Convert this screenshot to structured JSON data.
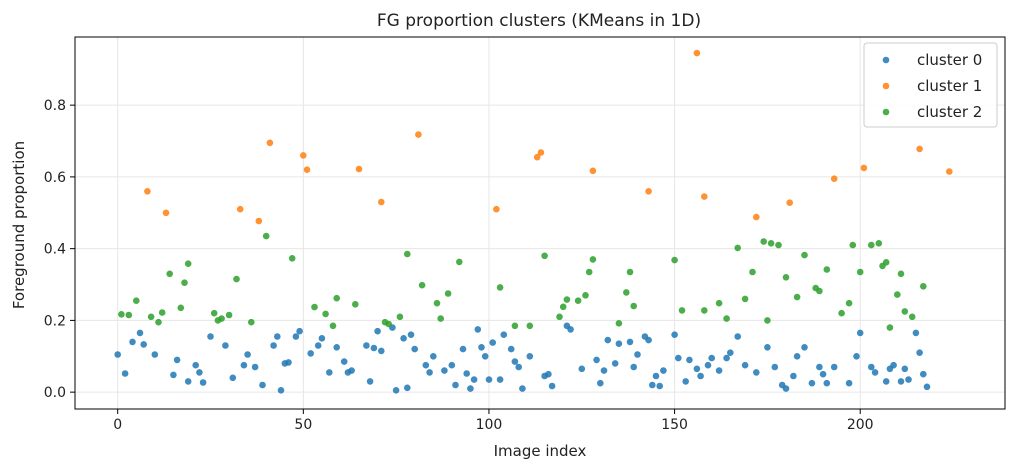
{
  "chart_data": {
    "type": "scatter",
    "title": "FG proportion clusters (KMeans in 1D)",
    "xlabel": "Image index",
    "ylabel": "Foreground proportion",
    "xlim": [
      -11.5,
      239
    ],
    "ylim": [
      -0.047,
      0.99
    ],
    "xticks": [
      0,
      50,
      100,
      150,
      200
    ],
    "yticks": [
      0.0,
      0.2,
      0.4,
      0.6,
      0.8
    ],
    "xtick_labels": [
      "0",
      "50",
      "100",
      "150",
      "200"
    ],
    "ytick_labels": [
      "0.0",
      "0.2",
      "0.4",
      "0.6",
      "0.8"
    ],
    "grid": true,
    "legend_position": "top-right",
    "series": [
      {
        "name": "cluster 0",
        "color": "#1f77b4",
        "points": [
          [
            0,
            0.105
          ],
          [
            2,
            0.052
          ],
          [
            4,
            0.14
          ],
          [
            6,
            0.165
          ],
          [
            7,
            0.133
          ],
          [
            10,
            0.105
          ],
          [
            15,
            0.048
          ],
          [
            16,
            0.09
          ],
          [
            19,
            0.03
          ],
          [
            21,
            0.075
          ],
          [
            22,
            0.055
          ],
          [
            23,
            0.027
          ],
          [
            25,
            0.155
          ],
          [
            29,
            0.13
          ],
          [
            31,
            0.04
          ],
          [
            34,
            0.075
          ],
          [
            35,
            0.105
          ],
          [
            37,
            0.07
          ],
          [
            39,
            0.02
          ],
          [
            42,
            0.13
          ],
          [
            43,
            0.155
          ],
          [
            44,
            0.005
          ],
          [
            45,
            0.08
          ],
          [
            46,
            0.083
          ],
          [
            48,
            0.155
          ],
          [
            49,
            0.17
          ],
          [
            52,
            0.108
          ],
          [
            54,
            0.13
          ],
          [
            55,
            0.15
          ],
          [
            57,
            0.055
          ],
          [
            59,
            0.125
          ],
          [
            61,
            0.085
          ],
          [
            62,
            0.055
          ],
          [
            63,
            0.06
          ],
          [
            67,
            0.13
          ],
          [
            68,
            0.03
          ],
          [
            69,
            0.123
          ],
          [
            70,
            0.17
          ],
          [
            71,
            0.115
          ],
          [
            74,
            0.18
          ],
          [
            75,
            0.005
          ],
          [
            77,
            0.15
          ],
          [
            78,
            0.012
          ],
          [
            79,
            0.16
          ],
          [
            80,
            0.12
          ],
          [
            83,
            0.075
          ],
          [
            84,
            0.055
          ],
          [
            85,
            0.1
          ],
          [
            88,
            0.06
          ],
          [
            90,
            0.075
          ],
          [
            91,
            0.02
          ],
          [
            93,
            0.12
          ],
          [
            94,
            0.052
          ],
          [
            95,
            0.01
          ],
          [
            96,
            0.035
          ],
          [
            97,
            0.175
          ],
          [
            98,
            0.125
          ],
          [
            99,
            0.1
          ],
          [
            100,
            0.035
          ],
          [
            101,
            0.138
          ],
          [
            103,
            0.035
          ],
          [
            104,
            0.16
          ],
          [
            106,
            0.12
          ],
          [
            107,
            0.085
          ],
          [
            108,
            0.07
          ],
          [
            109,
            0.01
          ],
          [
            111,
            0.1
          ],
          [
            115,
            0.045
          ],
          [
            116,
            0.05
          ],
          [
            117,
            0.017
          ],
          [
            121,
            0.185
          ],
          [
            122,
            0.175
          ],
          [
            125,
            0.065
          ],
          [
            129,
            0.09
          ],
          [
            130,
            0.025
          ],
          [
            131,
            0.06
          ],
          [
            132,
            0.145
          ],
          [
            134,
            0.08
          ],
          [
            135,
            0.135
          ],
          [
            138,
            0.14
          ],
          [
            139,
            0.07
          ],
          [
            140,
            0.105
          ],
          [
            142,
            0.155
          ],
          [
            143,
            0.145
          ],
          [
            144,
            0.02
          ],
          [
            145,
            0.045
          ],
          [
            146,
            0.017
          ],
          [
            147,
            0.06
          ],
          [
            150,
            0.16
          ],
          [
            151,
            0.095
          ],
          [
            153,
            0.03
          ],
          [
            154,
            0.09
          ],
          [
            156,
            0.065
          ],
          [
            157,
            0.045
          ],
          [
            159,
            0.075
          ],
          [
            160,
            0.095
          ],
          [
            162,
            0.06
          ],
          [
            164,
            0.095
          ],
          [
            165,
            0.11
          ],
          [
            167,
            0.155
          ],
          [
            169,
            0.075
          ],
          [
            172,
            0.055
          ],
          [
            175,
            0.125
          ],
          [
            177,
            0.07
          ],
          [
            179,
            0.02
          ],
          [
            180,
            0.01
          ],
          [
            182,
            0.045
          ],
          [
            183,
            0.1
          ],
          [
            185,
            0.125
          ],
          [
            187,
            0.025
          ],
          [
            189,
            0.07
          ],
          [
            190,
            0.05
          ],
          [
            191,
            0.025
          ],
          [
            193,
            0.07
          ],
          [
            197,
            0.025
          ],
          [
            199,
            0.1
          ],
          [
            200,
            0.165
          ],
          [
            203,
            0.07
          ],
          [
            204,
            0.055
          ],
          [
            207,
            0.03
          ],
          [
            208,
            0.065
          ],
          [
            209,
            0.075
          ],
          [
            211,
            0.03
          ],
          [
            212,
            0.065
          ],
          [
            213,
            0.035
          ],
          [
            215,
            0.165
          ],
          [
            216,
            0.11
          ],
          [
            217,
            0.05
          ],
          [
            218,
            0.015
          ]
        ]
      },
      {
        "name": "cluster 1",
        "color": "#ff7f0e",
        "points": [
          [
            8,
            0.56
          ],
          [
            13,
            0.5
          ],
          [
            33,
            0.51
          ],
          [
            38,
            0.477
          ],
          [
            41,
            0.695
          ],
          [
            50,
            0.66
          ],
          [
            51,
            0.62
          ],
          [
            65,
            0.622
          ],
          [
            71,
            0.53
          ],
          [
            81,
            0.718
          ],
          [
            102,
            0.51
          ],
          [
            113,
            0.655
          ],
          [
            114,
            0.668
          ],
          [
            128,
            0.617
          ],
          [
            143,
            0.56
          ],
          [
            156,
            0.945
          ],
          [
            158,
            0.545
          ],
          [
            172,
            0.488
          ],
          [
            181,
            0.528
          ],
          [
            193,
            0.595
          ],
          [
            201,
            0.625
          ],
          [
            216,
            0.678
          ],
          [
            224,
            0.615
          ]
        ]
      },
      {
        "name": "cluster 2",
        "color": "#2ca02c",
        "points": [
          [
            1,
            0.217
          ],
          [
            3,
            0.215
          ],
          [
            5,
            0.255
          ],
          [
            9,
            0.21
          ],
          [
            11,
            0.195
          ],
          [
            12,
            0.222
          ],
          [
            14,
            0.33
          ],
          [
            17,
            0.235
          ],
          [
            18,
            0.305
          ],
          [
            19,
            0.358
          ],
          [
            26,
            0.22
          ],
          [
            27,
            0.2
          ],
          [
            28,
            0.205
          ],
          [
            30,
            0.215
          ],
          [
            32,
            0.315
          ],
          [
            36,
            0.195
          ],
          [
            40,
            0.435
          ],
          [
            47,
            0.373
          ],
          [
            53,
            0.237
          ],
          [
            56,
            0.218
          ],
          [
            58,
            0.185
          ],
          [
            59,
            0.262
          ],
          [
            64,
            0.245
          ],
          [
            72,
            0.195
          ],
          [
            73,
            0.19
          ],
          [
            76,
            0.21
          ],
          [
            78,
            0.385
          ],
          [
            82,
            0.298
          ],
          [
            86,
            0.248
          ],
          [
            87,
            0.205
          ],
          [
            89,
            0.275
          ],
          [
            92,
            0.363
          ],
          [
            103,
            0.292
          ],
          [
            107,
            0.185
          ],
          [
            111,
            0.185
          ],
          [
            115,
            0.38
          ],
          [
            119,
            0.21
          ],
          [
            120,
            0.238
          ],
          [
            121,
            0.258
          ],
          [
            124,
            0.255
          ],
          [
            126,
            0.27
          ],
          [
            127,
            0.335
          ],
          [
            128,
            0.37
          ],
          [
            135,
            0.192
          ],
          [
            137,
            0.278
          ],
          [
            138,
            0.335
          ],
          [
            139,
            0.24
          ],
          [
            150,
            0.368
          ],
          [
            152,
            0.228
          ],
          [
            158,
            0.228
          ],
          [
            162,
            0.248
          ],
          [
            164,
            0.205
          ],
          [
            167,
            0.402
          ],
          [
            169,
            0.26
          ],
          [
            171,
            0.335
          ],
          [
            174,
            0.42
          ],
          [
            175,
            0.2
          ],
          [
            176,
            0.415
          ],
          [
            178,
            0.41
          ],
          [
            180,
            0.32
          ],
          [
            183,
            0.265
          ],
          [
            185,
            0.382
          ],
          [
            188,
            0.29
          ],
          [
            189,
            0.282
          ],
          [
            191,
            0.342
          ],
          [
            195,
            0.22
          ],
          [
            197,
            0.248
          ],
          [
            198,
            0.41
          ],
          [
            200,
            0.335
          ],
          [
            203,
            0.41
          ],
          [
            205,
            0.415
          ],
          [
            206,
            0.352
          ],
          [
            207,
            0.362
          ],
          [
            208,
            0.18
          ],
          [
            210,
            0.272
          ],
          [
            211,
            0.33
          ],
          [
            212,
            0.225
          ],
          [
            214,
            0.21
          ],
          [
            217,
            0.295
          ]
        ]
      }
    ]
  }
}
